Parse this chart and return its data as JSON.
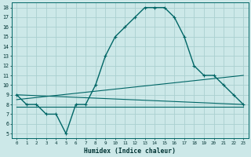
{
  "xlabel": "Humidex (Indice chaleur)",
  "bg_color": "#cce8e8",
  "grid_color": "#aad0d0",
  "line_color": "#006666",
  "xlim": [
    -0.5,
    23.5
  ],
  "ylim": [
    4.5,
    18.5
  ],
  "xticks": [
    0,
    1,
    2,
    3,
    4,
    5,
    6,
    7,
    8,
    9,
    10,
    11,
    12,
    13,
    14,
    15,
    16,
    17,
    18,
    19,
    20,
    21,
    22,
    23
  ],
  "yticks": [
    5,
    6,
    7,
    8,
    9,
    10,
    11,
    12,
    13,
    14,
    15,
    16,
    17,
    18
  ],
  "main_x": [
    0,
    1,
    2,
    3,
    4,
    5,
    6,
    7,
    8,
    9,
    10,
    11,
    12,
    13,
    14,
    15,
    16,
    17,
    18,
    19,
    20,
    21,
    22,
    23
  ],
  "main_y": [
    9,
    8,
    8,
    7,
    7,
    5,
    8,
    8,
    10,
    13,
    15,
    16,
    17,
    18,
    18,
    18,
    17,
    15,
    12,
    11,
    11,
    10,
    9,
    8
  ],
  "line1_x": [
    0,
    23
  ],
  "line1_y": [
    9.0,
    8.0
  ],
  "line2_x": [
    0,
    23
  ],
  "line2_y": [
    8.5,
    11.0
  ],
  "line3_x": [
    0,
    23
  ],
  "line3_y": [
    7.8,
    7.8
  ]
}
